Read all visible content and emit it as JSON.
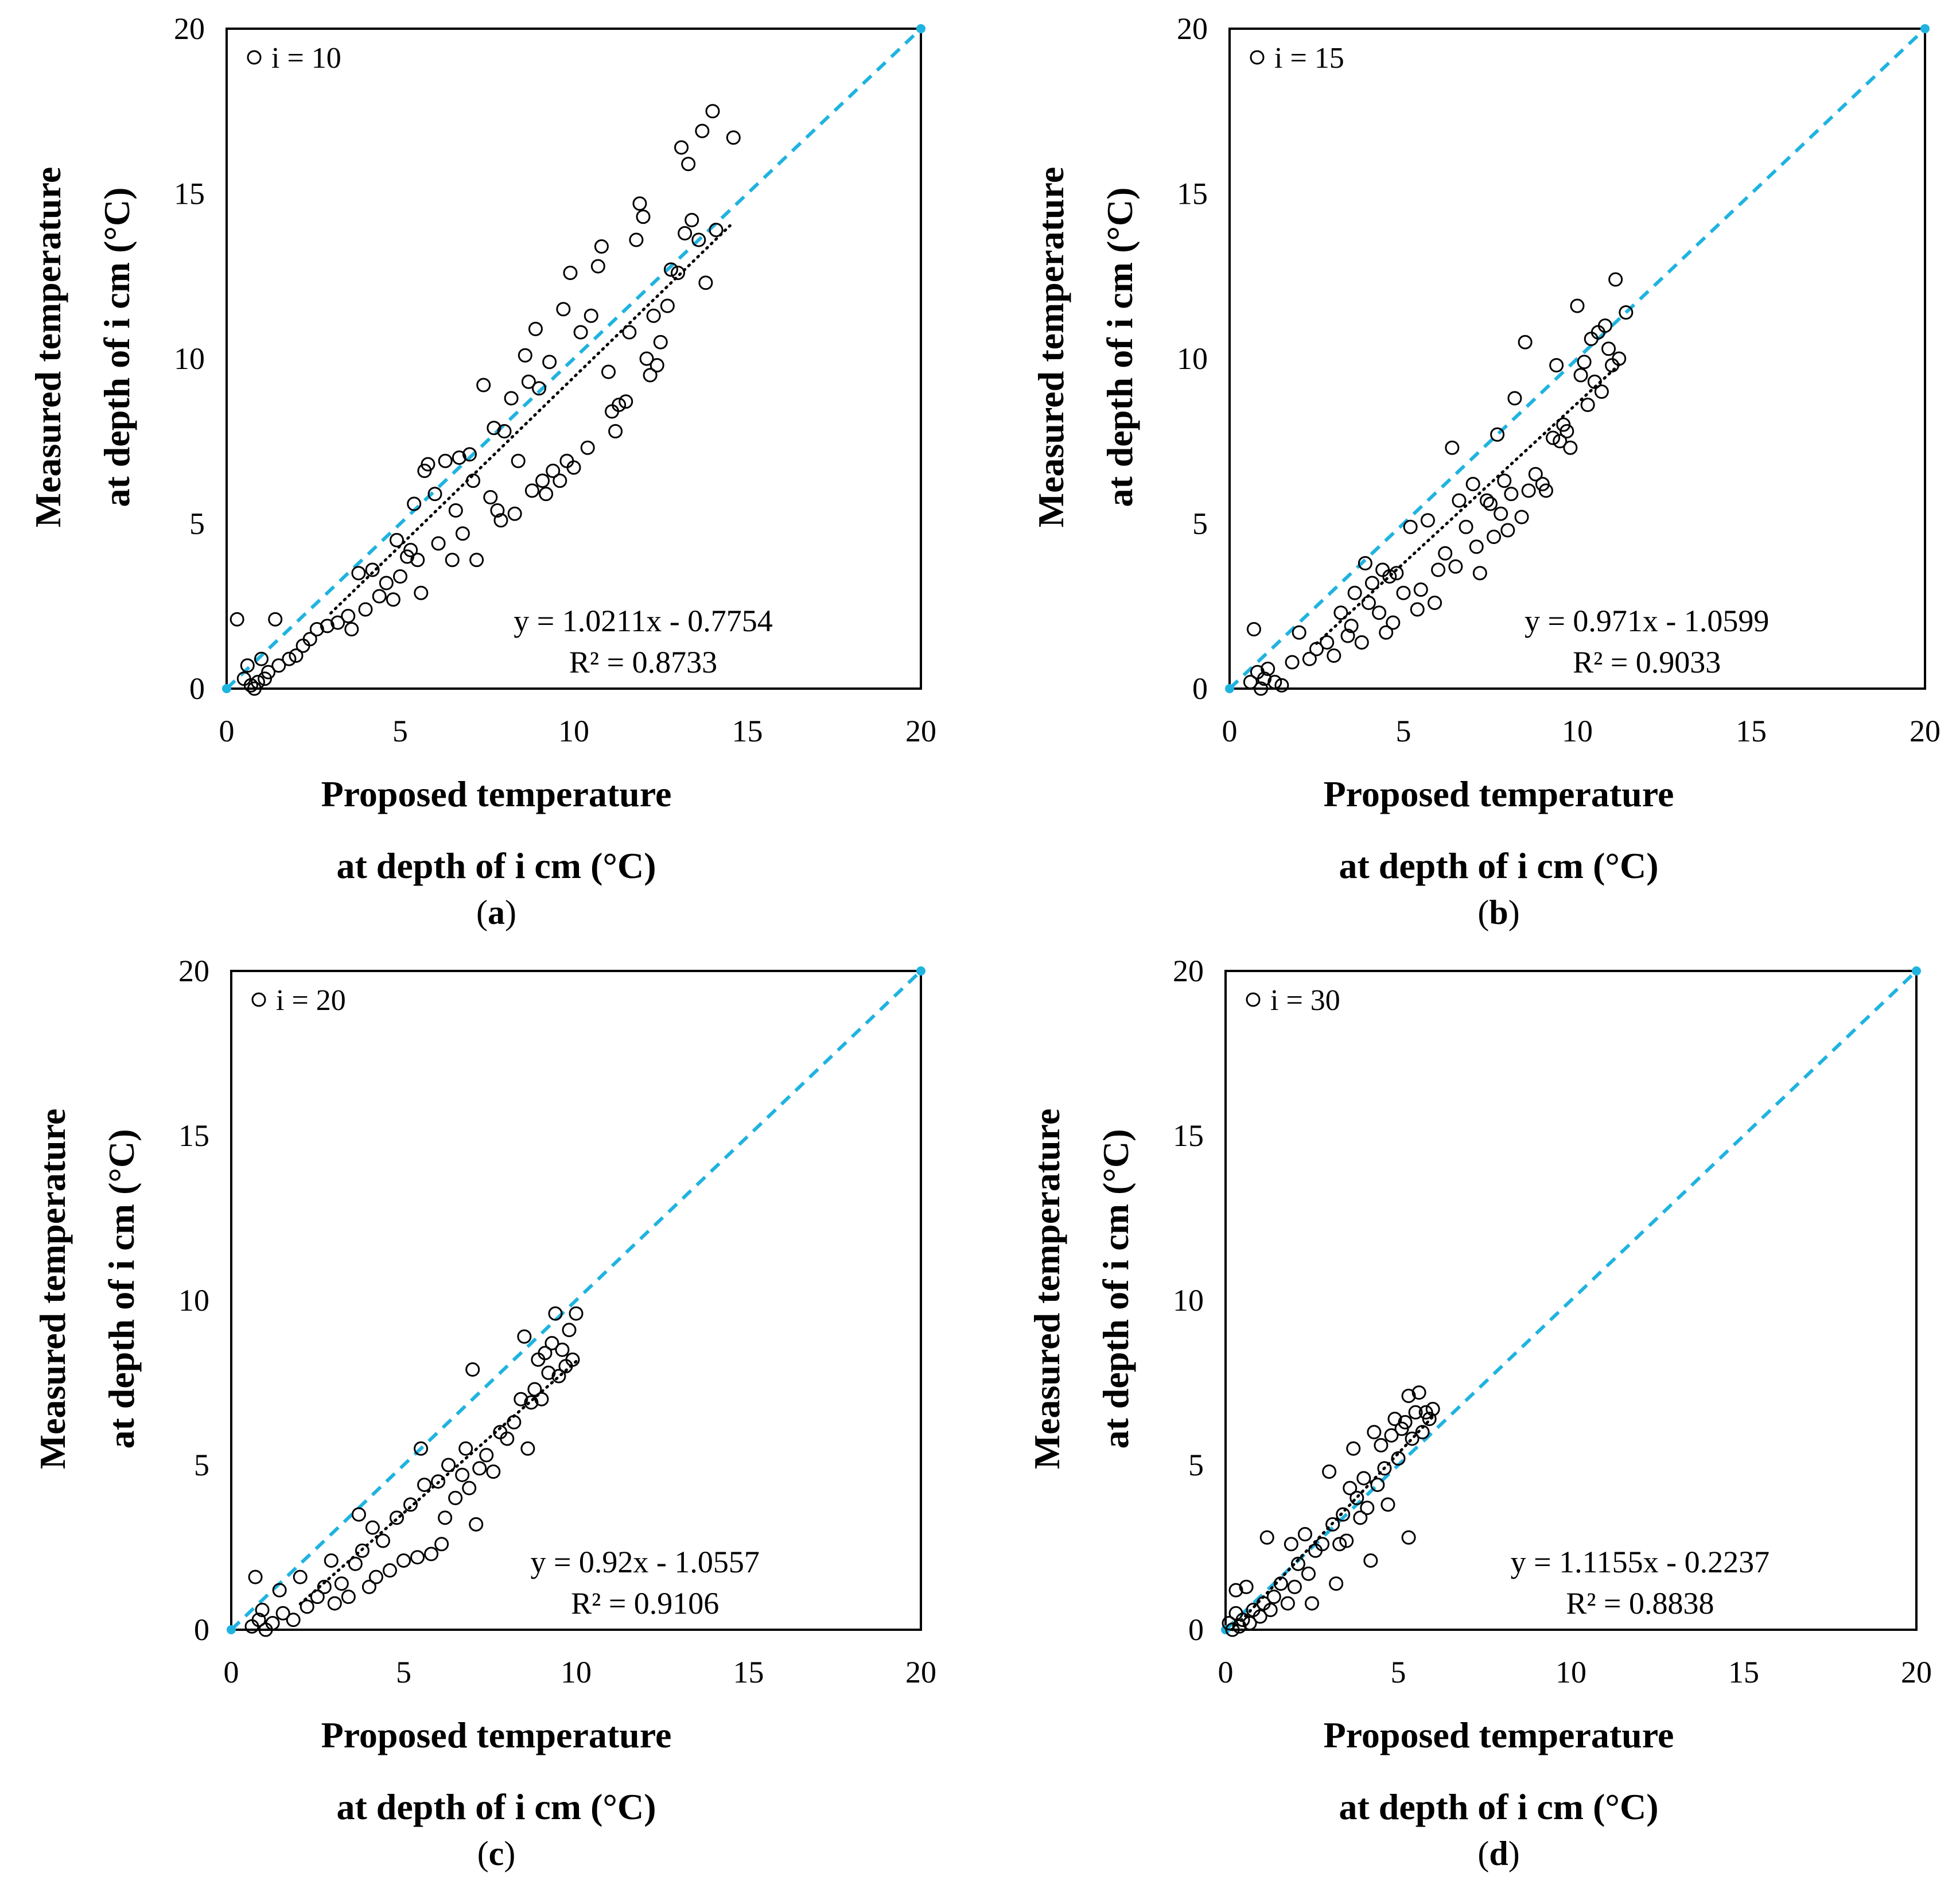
{
  "colors": {
    "identity_line": "#1FB3E0",
    "points": "#000000",
    "trend": "#000000",
    "frame": "#000000"
  },
  "chart_data": [
    {
      "type": "scatter",
      "panel": "(a)",
      "panel_letter": "a",
      "legend": "i = 10",
      "xlabel_line1": "Proposed temperature",
      "xlabel_line2": "at depth of i cm (°C)",
      "ylabel_line1": "Measured temperature",
      "ylabel_line2": "at depth of i cm (°C)",
      "xlim": [
        0,
        20
      ],
      "ylim": [
        0,
        20
      ],
      "xticks": [
        0,
        5,
        10,
        15,
        20
      ],
      "yticks": [
        0,
        5,
        10,
        15,
        20
      ],
      "equation": "y = 1.0211x - 0.7754",
      "r2": "R² = 0.8733",
      "trend": {
        "slope": 1.0211,
        "intercept": -0.7754,
        "x_range": [
          3.0,
          14.5
        ]
      },
      "points": [
        [
          0.3,
          2.1
        ],
        [
          0.5,
          0.3
        ],
        [
          0.6,
          0.7
        ],
        [
          0.7,
          0.1
        ],
        [
          0.8,
          0.0
        ],
        [
          0.9,
          0.2
        ],
        [
          1.0,
          0.9
        ],
        [
          1.1,
          0.3
        ],
        [
          1.2,
          0.5
        ],
        [
          1.4,
          2.1
        ],
        [
          1.5,
          0.7
        ],
        [
          1.8,
          0.9
        ],
        [
          2.0,
          1.0
        ],
        [
          2.2,
          1.3
        ],
        [
          2.4,
          1.5
        ],
        [
          2.6,
          1.8
        ],
        [
          2.9,
          1.9
        ],
        [
          3.2,
          2.0
        ],
        [
          3.5,
          2.2
        ],
        [
          3.6,
          1.8
        ],
        [
          3.8,
          3.5
        ],
        [
          4.0,
          2.4
        ],
        [
          4.2,
          3.6
        ],
        [
          4.4,
          2.8
        ],
        [
          4.6,
          3.2
        ],
        [
          4.8,
          2.7
        ],
        [
          4.9,
          4.5
        ],
        [
          5.0,
          3.4
        ],
        [
          5.2,
          4.0
        ],
        [
          5.3,
          4.2
        ],
        [
          5.4,
          5.6
        ],
        [
          5.5,
          3.9
        ],
        [
          5.6,
          2.9
        ],
        [
          5.7,
          6.6
        ],
        [
          5.8,
          6.8
        ],
        [
          6.0,
          5.9
        ],
        [
          6.1,
          4.4
        ],
        [
          6.3,
          6.9
        ],
        [
          6.5,
          3.9
        ],
        [
          6.6,
          5.4
        ],
        [
          6.7,
          7.0
        ],
        [
          6.8,
          4.7
        ],
        [
          7.0,
          7.1
        ],
        [
          7.1,
          6.3
        ],
        [
          7.2,
          3.9
        ],
        [
          7.4,
          9.2
        ],
        [
          7.6,
          5.8
        ],
        [
          7.7,
          7.9
        ],
        [
          7.8,
          5.4
        ],
        [
          7.9,
          5.1
        ],
        [
          8.0,
          7.8
        ],
        [
          8.2,
          8.8
        ],
        [
          8.3,
          5.3
        ],
        [
          8.4,
          6.9
        ],
        [
          8.6,
          10.1
        ],
        [
          8.7,
          9.3
        ],
        [
          8.8,
          6.0
        ],
        [
          8.9,
          10.9
        ],
        [
          9.0,
          9.1
        ],
        [
          9.1,
          6.3
        ],
        [
          9.2,
          5.9
        ],
        [
          9.3,
          9.9
        ],
        [
          9.4,
          6.6
        ],
        [
          9.6,
          6.3
        ],
        [
          9.7,
          11.5
        ],
        [
          9.8,
          6.9
        ],
        [
          9.9,
          12.6
        ],
        [
          10.0,
          6.7
        ],
        [
          10.2,
          10.8
        ],
        [
          10.4,
          7.3
        ],
        [
          10.5,
          11.3
        ],
        [
          10.7,
          12.8
        ],
        [
          10.8,
          13.4
        ],
        [
          11.0,
          9.6
        ],
        [
          11.1,
          8.4
        ],
        [
          11.2,
          7.8
        ],
        [
          11.3,
          8.6
        ],
        [
          11.5,
          8.7
        ],
        [
          11.6,
          10.8
        ],
        [
          11.8,
          13.6
        ],
        [
          11.9,
          14.7
        ],
        [
          12.0,
          14.3
        ],
        [
          12.1,
          10.0
        ],
        [
          12.2,
          9.5
        ],
        [
          12.3,
          11.3
        ],
        [
          12.4,
          9.8
        ],
        [
          12.5,
          10.5
        ],
        [
          12.7,
          11.6
        ],
        [
          12.8,
          12.7
        ],
        [
          13.0,
          12.6
        ],
        [
          13.1,
          16.4
        ],
        [
          13.2,
          13.8
        ],
        [
          13.3,
          15.9
        ],
        [
          13.4,
          14.2
        ],
        [
          13.6,
          13.6
        ],
        [
          13.7,
          16.9
        ],
        [
          13.8,
          12.3
        ],
        [
          14.0,
          17.5
        ],
        [
          14.1,
          13.9
        ],
        [
          14.6,
          16.7
        ]
      ]
    },
    {
      "type": "scatter",
      "panel": "(b)",
      "panel_letter": "b",
      "legend": "i = 15",
      "xlabel_line1": "Proposed temperature",
      "xlabel_line2": "at depth of i cm (°C)",
      "ylabel_line1": "Measured temperature",
      "ylabel_line2": "at depth of i cm (°C)",
      "xlim": [
        0,
        20
      ],
      "ylim": [
        0,
        20
      ],
      "xticks": [
        0,
        5,
        10,
        15,
        20
      ],
      "yticks": [
        0,
        5,
        10,
        15,
        20
      ],
      "equation": "y = 0.971x - 1.0599",
      "r2": "R² = 0.9033",
      "trend": {
        "slope": 0.971,
        "intercept": -1.0599,
        "x_range": [
          2.5,
          11.3
        ]
      },
      "points": [
        [
          0.6,
          0.2
        ],
        [
          0.7,
          1.8
        ],
        [
          0.8,
          0.5
        ],
        [
          0.9,
          0.0
        ],
        [
          1.0,
          0.3
        ],
        [
          1.1,
          0.6
        ],
        [
          1.3,
          0.2
        ],
        [
          1.5,
          0.1
        ],
        [
          1.8,
          0.8
        ],
        [
          2.0,
          1.7
        ],
        [
          2.3,
          0.9
        ],
        [
          2.5,
          1.2
        ],
        [
          2.8,
          1.4
        ],
        [
          3.0,
          1.0
        ],
        [
          3.2,
          2.3
        ],
        [
          3.4,
          1.6
        ],
        [
          3.5,
          1.9
        ],
        [
          3.6,
          2.9
        ],
        [
          3.8,
          1.4
        ],
        [
          3.9,
          3.8
        ],
        [
          4.0,
          2.6
        ],
        [
          4.1,
          3.2
        ],
        [
          4.3,
          2.3
        ],
        [
          4.4,
          3.6
        ],
        [
          4.5,
          1.7
        ],
        [
          4.6,
          3.4
        ],
        [
          4.7,
          2.0
        ],
        [
          4.8,
          3.5
        ],
        [
          5.0,
          2.9
        ],
        [
          5.2,
          4.9
        ],
        [
          5.4,
          2.4
        ],
        [
          5.5,
          3.0
        ],
        [
          5.7,
          5.1
        ],
        [
          5.9,
          2.6
        ],
        [
          6.0,
          3.6
        ],
        [
          6.2,
          4.1
        ],
        [
          6.4,
          7.3
        ],
        [
          6.5,
          3.7
        ],
        [
          6.6,
          5.7
        ],
        [
          6.8,
          4.9
        ],
        [
          7.0,
          6.2
        ],
        [
          7.1,
          4.3
        ],
        [
          7.2,
          3.5
        ],
        [
          7.4,
          5.7
        ],
        [
          7.5,
          5.6
        ],
        [
          7.6,
          4.6
        ],
        [
          7.7,
          7.7
        ],
        [
          7.8,
          5.3
        ],
        [
          7.9,
          6.3
        ],
        [
          8.0,
          4.8
        ],
        [
          8.1,
          5.9
        ],
        [
          8.2,
          8.8
        ],
        [
          8.4,
          5.2
        ],
        [
          8.5,
          10.5
        ],
        [
          8.6,
          6.0
        ],
        [
          8.8,
          6.5
        ],
        [
          9.0,
          6.2
        ],
        [
          9.1,
          6.0
        ],
        [
          9.3,
          7.6
        ],
        [
          9.4,
          9.8
        ],
        [
          9.5,
          7.5
        ],
        [
          9.6,
          8.0
        ],
        [
          9.7,
          7.8
        ],
        [
          9.8,
          7.3
        ],
        [
          10.0,
          11.6
        ],
        [
          10.1,
          9.5
        ],
        [
          10.2,
          9.9
        ],
        [
          10.3,
          8.6
        ],
        [
          10.4,
          10.6
        ],
        [
          10.5,
          9.3
        ],
        [
          10.6,
          10.8
        ],
        [
          10.7,
          9.0
        ],
        [
          10.8,
          11.0
        ],
        [
          10.9,
          10.3
        ],
        [
          11.0,
          9.8
        ],
        [
          11.1,
          12.4
        ],
        [
          11.2,
          10.0
        ],
        [
          11.4,
          11.4
        ]
      ]
    },
    {
      "type": "scatter",
      "panel": "(c)",
      "panel_letter": "c",
      "legend": "i = 20",
      "xlabel_line1": "Proposed temperature",
      "xlabel_line2": "at depth of  i cm (°C)",
      "ylabel_line1": "Measured temperature",
      "ylabel_line2": "at depth of i cm (°C)",
      "xlim": [
        0,
        20
      ],
      "ylim": [
        0,
        20
      ],
      "xticks": [
        0,
        5,
        10,
        15,
        20
      ],
      "yticks": [
        0,
        5,
        10,
        15,
        20
      ],
      "equation": "y = 0.92x - 1.0557",
      "r2": "R² = 0.9106",
      "trend": {
        "slope": 0.92,
        "intercept": -1.0557,
        "x_range": [
          2.0,
          10.0
        ]
      },
      "points": [
        [
          0.6,
          0.1
        ],
        [
          0.7,
          1.6
        ],
        [
          0.8,
          0.3
        ],
        [
          0.9,
          0.6
        ],
        [
          1.0,
          0.0
        ],
        [
          1.2,
          0.2
        ],
        [
          1.4,
          1.2
        ],
        [
          1.5,
          0.5
        ],
        [
          1.8,
          0.3
        ],
        [
          2.0,
          1.6
        ],
        [
          2.2,
          0.7
        ],
        [
          2.5,
          1.0
        ],
        [
          2.7,
          1.3
        ],
        [
          2.9,
          2.1
        ],
        [
          3.0,
          0.8
        ],
        [
          3.2,
          1.4
        ],
        [
          3.4,
          1.0
        ],
        [
          3.6,
          2.0
        ],
        [
          3.7,
          3.5
        ],
        [
          3.8,
          2.4
        ],
        [
          4.0,
          1.3
        ],
        [
          4.1,
          3.1
        ],
        [
          4.2,
          1.6
        ],
        [
          4.4,
          2.7
        ],
        [
          4.6,
          1.8
        ],
        [
          4.8,
          3.4
        ],
        [
          5.0,
          2.1
        ],
        [
          5.2,
          3.8
        ],
        [
          5.4,
          2.2
        ],
        [
          5.5,
          5.5
        ],
        [
          5.6,
          4.4
        ],
        [
          5.8,
          2.3
        ],
        [
          6.0,
          4.5
        ],
        [
          6.1,
          2.6
        ],
        [
          6.2,
          3.4
        ],
        [
          6.3,
          5.0
        ],
        [
          6.5,
          4.0
        ],
        [
          6.7,
          4.7
        ],
        [
          6.8,
          5.5
        ],
        [
          6.9,
          4.3
        ],
        [
          7.0,
          7.9
        ],
        [
          7.1,
          3.2
        ],
        [
          7.2,
          4.9
        ],
        [
          7.4,
          5.3
        ],
        [
          7.6,
          4.8
        ],
        [
          7.8,
          6.0
        ],
        [
          8.0,
          5.8
        ],
        [
          8.2,
          6.3
        ],
        [
          8.4,
          7.0
        ],
        [
          8.5,
          8.9
        ],
        [
          8.6,
          5.5
        ],
        [
          8.7,
          6.9
        ],
        [
          8.8,
          7.3
        ],
        [
          8.9,
          8.2
        ],
        [
          9.0,
          7.0
        ],
        [
          9.1,
          8.4
        ],
        [
          9.2,
          7.8
        ],
        [
          9.3,
          8.7
        ],
        [
          9.4,
          9.6
        ],
        [
          9.5,
          7.7
        ],
        [
          9.6,
          8.5
        ],
        [
          9.7,
          8.0
        ],
        [
          9.8,
          9.1
        ],
        [
          9.9,
          8.2
        ],
        [
          10.0,
          9.6
        ]
      ]
    },
    {
      "type": "scatter",
      "panel": "(d)",
      "panel_letter": "d",
      "legend": "i = 30",
      "xlabel_line1": "Proposed temperature",
      "xlabel_line2": "at depth of i cm (°C)",
      "ylabel_line1": "Measured temperature",
      "ylabel_line2": "at depth of i cm (°C)",
      "xlim": [
        0,
        20
      ],
      "ylim": [
        0,
        20
      ],
      "xticks": [
        0,
        5,
        10,
        15,
        20
      ],
      "yticks": [
        0,
        5,
        10,
        15,
        20
      ],
      "equation": "y = 1.1155x - 0.2237",
      "r2": "R² = 0.8838",
      "trend": {
        "slope": 1.1155,
        "intercept": -0.2237,
        "x_range": [
          0.2,
          6.0
        ]
      },
      "points": [
        [
          0.1,
          0.2
        ],
        [
          0.2,
          0.0
        ],
        [
          0.3,
          0.5
        ],
        [
          0.3,
          1.2
        ],
        [
          0.4,
          0.1
        ],
        [
          0.5,
          0.3
        ],
        [
          0.6,
          1.3
        ],
        [
          0.7,
          0.2
        ],
        [
          0.8,
          0.6
        ],
        [
          1.0,
          0.4
        ],
        [
          1.1,
          0.8
        ],
        [
          1.2,
          2.8
        ],
        [
          1.3,
          0.6
        ],
        [
          1.4,
          1.0
        ],
        [
          1.6,
          1.4
        ],
        [
          1.8,
          0.8
        ],
        [
          1.9,
          2.6
        ],
        [
          2.0,
          1.3
        ],
        [
          2.1,
          2.0
        ],
        [
          2.3,
          2.9
        ],
        [
          2.4,
          1.7
        ],
        [
          2.5,
          0.8
        ],
        [
          2.6,
          2.4
        ],
        [
          2.8,
          2.6
        ],
        [
          3.0,
          4.8
        ],
        [
          3.1,
          3.2
        ],
        [
          3.2,
          1.4
        ],
        [
          3.3,
          2.6
        ],
        [
          3.4,
          3.5
        ],
        [
          3.5,
          2.7
        ],
        [
          3.6,
          4.3
        ],
        [
          3.7,
          5.5
        ],
        [
          3.8,
          4.0
        ],
        [
          3.9,
          3.4
        ],
        [
          4.0,
          4.6
        ],
        [
          4.1,
          3.7
        ],
        [
          4.2,
          2.1
        ],
        [
          4.3,
          6.0
        ],
        [
          4.4,
          4.4
        ],
        [
          4.5,
          5.6
        ],
        [
          4.6,
          4.9
        ],
        [
          4.7,
          3.8
        ],
        [
          4.8,
          5.9
        ],
        [
          4.9,
          6.4
        ],
        [
          5.0,
          5.2
        ],
        [
          5.1,
          6.1
        ],
        [
          5.2,
          6.3
        ],
        [
          5.3,
          7.1
        ],
        [
          5.3,
          2.8
        ],
        [
          5.4,
          5.8
        ],
        [
          5.5,
          6.6
        ],
        [
          5.6,
          7.2
        ],
        [
          5.7,
          6.0
        ],
        [
          5.8,
          6.6
        ],
        [
          5.9,
          6.4
        ],
        [
          6.0,
          6.7
        ]
      ]
    }
  ]
}
